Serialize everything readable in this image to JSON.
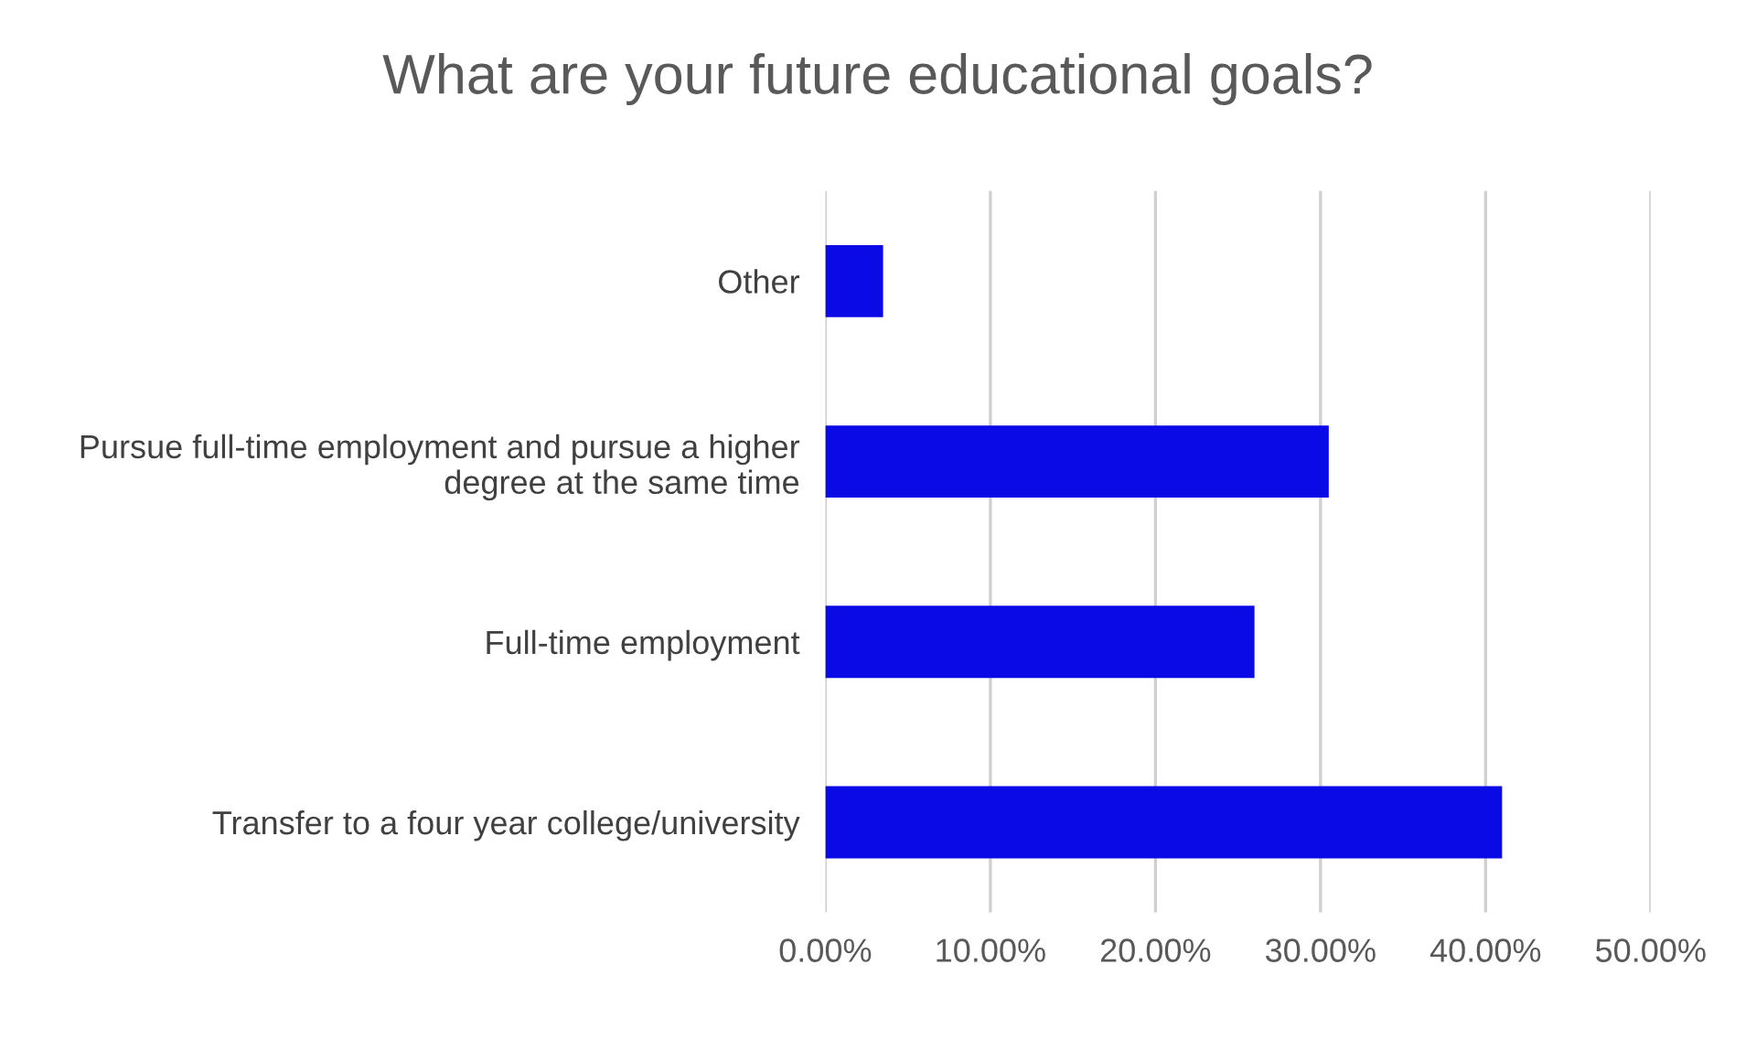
{
  "chart_data": {
    "type": "bar",
    "orientation": "horizontal",
    "title": "What are your future educational goals?",
    "categories": [
      "Other",
      "Pursue full-time employment and pursue a higher degree at the same time",
      "Full-time employment",
      "Transfer to a four year college/university"
    ],
    "values": [
      3.5,
      30.5,
      26,
      41
    ],
    "color": "#0a0ae6",
    "xlim": [
      0,
      50
    ],
    "xticks": [
      {
        "value": 0,
        "label": "0.00%"
      },
      {
        "value": 10,
        "label": "10.00%"
      },
      {
        "value": 20,
        "label": "20.00%"
      },
      {
        "value": 30,
        "label": "30.00%"
      },
      {
        "value": 40,
        "label": "40.00%"
      },
      {
        "value": 50,
        "label": "50.00%"
      }
    ],
    "grid": "x"
  }
}
